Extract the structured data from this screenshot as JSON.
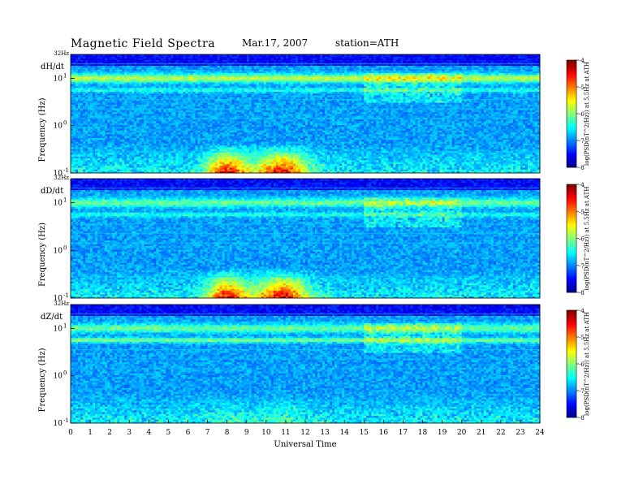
{
  "header": {
    "title": "Magnetic Field Spectra",
    "date": "Mar.17, 2007",
    "station": "station=ATH"
  },
  "chart_data": {
    "type": "heatmap",
    "title": "Magnetic Field Spectra",
    "xlabel": "Universal Time",
    "xlim": [
      0,
      24
    ],
    "x_ticks": [
      0,
      1,
      2,
      3,
      4,
      5,
      6,
      7,
      8,
      9,
      10,
      11,
      12,
      13,
      14,
      15,
      16,
      17,
      18,
      19,
      20,
      21,
      22,
      23,
      24
    ],
    "ylabel": "Frequency (Hz)",
    "y_scale": "log",
    "ylim": [
      0.1,
      32
    ],
    "y_ticks": [
      {
        "value": 32,
        "label": "32Hz"
      },
      {
        "value": 10,
        "label": "10",
        "exp": "1"
      },
      {
        "value": 1,
        "label": "10",
        "exp": "0"
      },
      {
        "value": 0.1,
        "label": "10",
        "exp": "-1"
      }
    ],
    "colorbar": {
      "label": "log(PSD(nT^2/Hz)) at 5.5Hz at ATH",
      "range": [
        -8,
        -4
      ],
      "ticks": [
        "-4",
        "-5",
        "-6",
        "-7",
        "-8"
      ]
    },
    "panels": [
      {
        "name": "dH/dt"
      },
      {
        "name": "dD/dt"
      },
      {
        "name": "dZ/dt"
      }
    ],
    "colors": {
      "low": "#00007f",
      "mid_low": "#0000ff",
      "mid": "#00ffff",
      "mid_high": "#00ff00",
      "high": "#ffff00",
      "max": "#ff0000"
    }
  }
}
